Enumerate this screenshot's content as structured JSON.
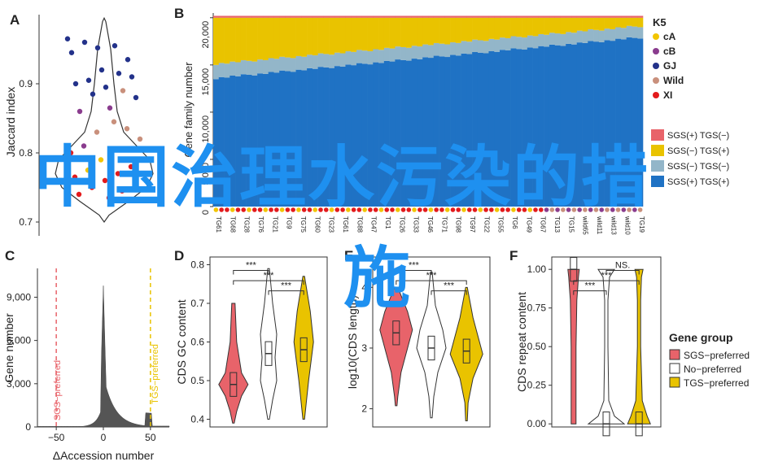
{
  "colors": {
    "sgs_plus": "#e8636a",
    "sgs_minus": "#e9c300",
    "sgs_gray": "#93b6c9",
    "tgs_blue": "#1f72c4",
    "overlay": "#1e90f0",
    "k5": [
      "#f2c500",
      "#8a3c8e",
      "#23328a",
      "#c9907c",
      "#e31a1c"
    ]
  },
  "overlay_text": {
    "line1": "中国治理水污染的措",
    "line2": "施"
  },
  "chart_data": [
    {
      "panel": "A",
      "type": "scatter",
      "ylabel": "Jaccard index",
      "ylim": [
        0.68,
        1.0
      ],
      "yticks": [
        "0.7",
        "0.8",
        "0.9"
      ],
      "points": [
        {
          "y": 0.965,
          "g": "GJ"
        },
        {
          "y": 0.952,
          "g": "GJ"
        },
        {
          "y": 0.935,
          "g": "GJ"
        },
        {
          "y": 0.96,
          "g": "GJ"
        },
        {
          "y": 0.955,
          "g": "GJ"
        },
        {
          "y": 0.945,
          "g": "GJ"
        },
        {
          "y": 0.92,
          "g": "GJ"
        },
        {
          "y": 0.91,
          "g": "GJ"
        },
        {
          "y": 0.905,
          "g": "GJ"
        },
        {
          "y": 0.915,
          "g": "GJ"
        },
        {
          "y": 0.9,
          "g": "GJ"
        },
        {
          "y": 0.895,
          "g": "GJ"
        },
        {
          "y": 0.88,
          "g": "GJ"
        },
        {
          "y": 0.885,
          "g": "GJ"
        },
        {
          "y": 0.89,
          "g": "Wild"
        },
        {
          "y": 0.86,
          "g": "cB"
        },
        {
          "y": 0.865,
          "g": "cB"
        },
        {
          "y": 0.82,
          "g": "Wild"
        },
        {
          "y": 0.83,
          "g": "Wild"
        },
        {
          "y": 0.835,
          "g": "Wild"
        },
        {
          "y": 0.81,
          "g": "cB"
        },
        {
          "y": 0.845,
          "g": "Wild"
        },
        {
          "y": 0.8,
          "g": "XI"
        },
        {
          "y": 0.79,
          "g": "cA"
        },
        {
          "y": 0.78,
          "g": "XI"
        },
        {
          "y": 0.775,
          "g": "cA"
        },
        {
          "y": 0.77,
          "g": "XI"
        },
        {
          "y": 0.765,
          "g": "XI"
        },
        {
          "y": 0.76,
          "g": "XI"
        },
        {
          "y": 0.755,
          "g": "XI"
        },
        {
          "y": 0.75,
          "g": "XI"
        },
        {
          "y": 0.745,
          "g": "XI"
        },
        {
          "y": 0.74,
          "g": "XI"
        },
        {
          "y": 0.735,
          "g": "XI"
        }
      ]
    },
    {
      "panel": "B",
      "type": "bar",
      "stacked": true,
      "ylabel": "Gene family number",
      "ylim": [
        0,
        20500
      ],
      "yticks": [
        "0",
        "5,000",
        "10,000",
        "15,000",
        "20,000"
      ],
      "n": 78,
      "series": [
        {
          "name": "SGS(+) TGS(−)",
          "values_desc": "thin top band ~200"
        },
        {
          "name": "SGS(−) TGS(+)",
          "values_desc": "remaining to total"
        },
        {
          "name": "SGS(−) TGS(−)",
          "values_desc": "~1,500 band"
        },
        {
          "name": "SGS(+) TGS(+)",
          "values_from": 13500,
          "values_to": 17900
        }
      ],
      "tick_labels": [
        "TG61",
        "TG68",
        "TG28",
        "TG76",
        "TG21",
        "TG9",
        "TG75",
        "TG60",
        "TG23",
        "TG61",
        "TG88",
        "TG47",
        "TG1",
        "TG26",
        "TG33",
        "TG46",
        "TG71",
        "TG98",
        "TG97",
        "TG22",
        "TG55",
        "TG6",
        "TG49",
        "TG67",
        "TG13",
        "TG15",
        "wild65",
        "wild11",
        "wild13",
        "wild10",
        "TG19"
      ],
      "legend_title": "K5",
      "legend": [
        "cA",
        "cB",
        "GJ",
        "Wild",
        "XI"
      ]
    },
    {
      "panel": "C",
      "type": "area",
      "xlabel": "ΔAccession number",
      "ylabel": "Gene number",
      "xlim": [
        -70,
        70
      ],
      "ylim": [
        0,
        11000
      ],
      "xticks": [
        "−50",
        "0",
        "50"
      ],
      "yticks": [
        "0",
        "3,000",
        "6,000",
        "9,000"
      ],
      "annotations": [
        "SGS−preferred",
        "TGS−preferred"
      ]
    },
    {
      "panel": "D",
      "type": "violin",
      "ylabel": "CDS GC content",
      "ylim": [
        0.38,
        0.82
      ],
      "yticks": [
        "0.4",
        "0.5",
        "0.6",
        "0.7",
        "0.8"
      ],
      "groups": [
        {
          "median": 0.49
        },
        {
          "median": 0.57
        },
        {
          "median": 0.58
        }
      ],
      "significance": [
        "***",
        "***",
        "***"
      ]
    },
    {
      "panel": "E",
      "type": "violin",
      "ylabel": "log10(CDS length)",
      "ylim": [
        1.7,
        4.5
      ],
      "yticks": [
        "2",
        "3",
        "4"
      ],
      "groups": [
        {
          "median": 3.25
        },
        {
          "median": 3.0
        },
        {
          "median": 2.95
        }
      ],
      "significance": [
        "***",
        "***",
        "***"
      ]
    },
    {
      "panel": "F",
      "type": "violin",
      "ylabel": "CDS repeat content",
      "ylim": [
        -0.02,
        1.08
      ],
      "yticks": [
        "0.00",
        "0.25",
        "0.50",
        "0.75",
        "1.00"
      ],
      "groups": [
        {
          "median": 1.0
        },
        {
          "median": 0.0
        },
        {
          "median": 0.0
        }
      ],
      "significance": [
        "***",
        "***",
        "NS."
      ],
      "legend_title": "Gene group",
      "legend": [
        "SGS−preferred",
        "No−preferred",
        "TGS−preferred"
      ]
    }
  ]
}
